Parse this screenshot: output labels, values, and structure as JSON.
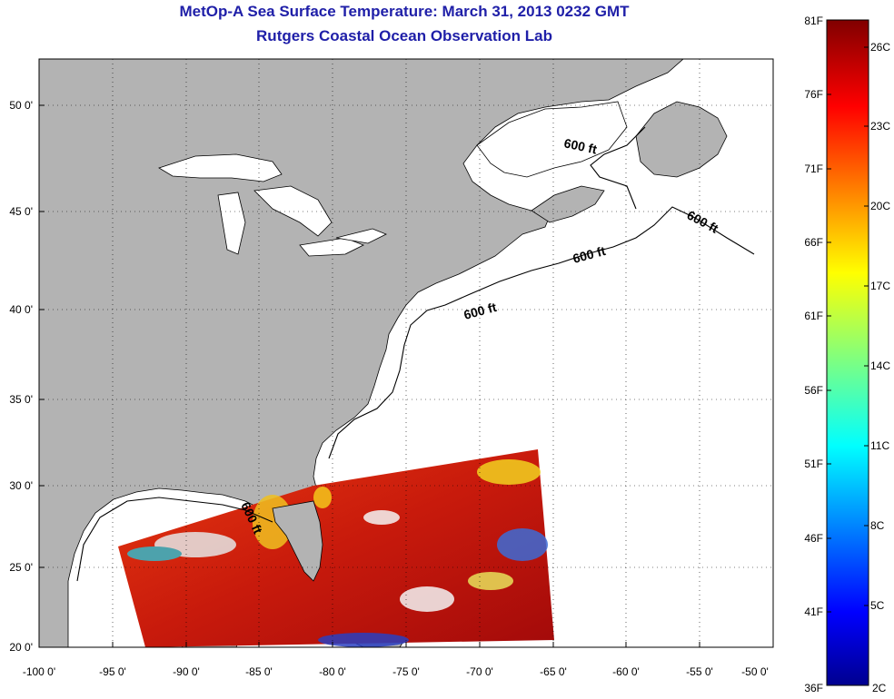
{
  "title": "MetOp-A Sea Surface Temperature:  March 31, 2013 0232 GMT",
  "subtitle": "Rutgers Coastal Ocean Observation Lab",
  "map": {
    "lon_ticks": [
      "-100 0'",
      "-95 0'",
      "-90 0'",
      "-85 0'",
      "-80 0'",
      "-75 0'",
      "-70 0'",
      "-65 0'",
      "-60 0'",
      "-55 0'",
      "-50 0'"
    ],
    "lat_ticks": [
      "50 0'",
      "45 0'",
      "40 0'",
      "35 0'",
      "30 0'",
      "25 0'",
      "20 0'"
    ],
    "contour_labels": [
      "600 ft",
      "600 ft",
      "600 ft",
      "600 ft",
      "600 ft"
    ],
    "colors": {
      "land": "#b3b3b3",
      "ocean": "#ffffff",
      "grid": "#000000"
    }
  },
  "colorbar": {
    "fahrenheit": [
      "81F",
      "76F",
      "71F",
      "66F",
      "61F",
      "56F",
      "51F",
      "46F",
      "41F",
      "36F"
    ],
    "celsius": [
      "26C",
      "23C",
      "20C",
      "17C",
      "14C",
      "11C",
      "8C",
      "5C",
      "2C"
    ],
    "colormap": "jet"
  }
}
